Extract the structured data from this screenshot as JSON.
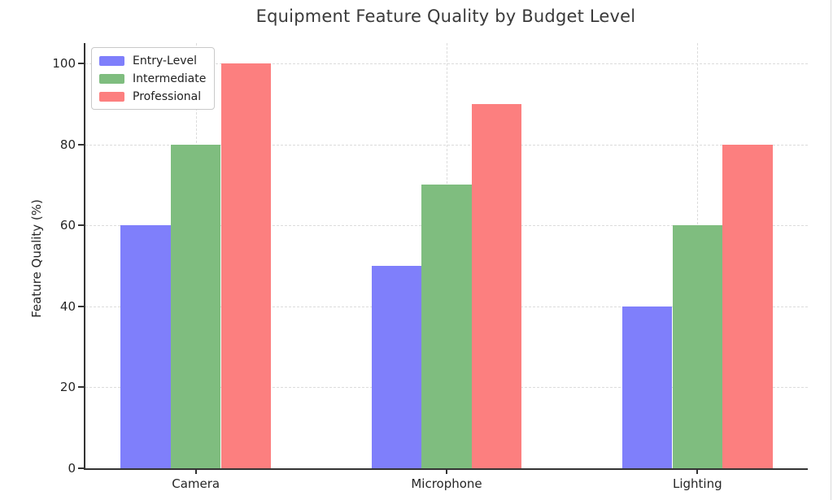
{
  "page": {
    "background": "#ffffff",
    "right_edge_line_color": "#d9d9d9"
  },
  "chart_data": {
    "type": "bar",
    "title": "Equipment Feature Quality by Budget Level",
    "xlabel": "",
    "ylabel": "Feature Quality (%)",
    "categories": [
      "Camera",
      "Microphone",
      "Lighting"
    ],
    "series": [
      {
        "name": "Entry-Level",
        "color": "#7f7ffb",
        "values": [
          60,
          50,
          40
        ]
      },
      {
        "name": "Intermediate",
        "color": "#7fbd7f",
        "values": [
          80,
          70,
          60
        ]
      },
      {
        "name": "Professional",
        "color": "#fc7f7f",
        "values": [
          100,
          90,
          80
        ]
      }
    ],
    "ylim": [
      0,
      105
    ],
    "yticks": [
      0,
      20,
      40,
      60,
      80,
      100
    ],
    "xlim": [
      -0.44,
      2.44
    ],
    "bar_width": 0.2,
    "bar_offsets": [
      -0.2,
      0,
      0.2
    ],
    "grid": {
      "on": true,
      "style": "dashed",
      "color": "#dcdcdc",
      "horizontal": true,
      "vertical": true
    },
    "legend": {
      "position": "upper left"
    },
    "axis_color": "#333333",
    "tick_label_color": "#262626",
    "title_color": "#3a3a3a"
  }
}
